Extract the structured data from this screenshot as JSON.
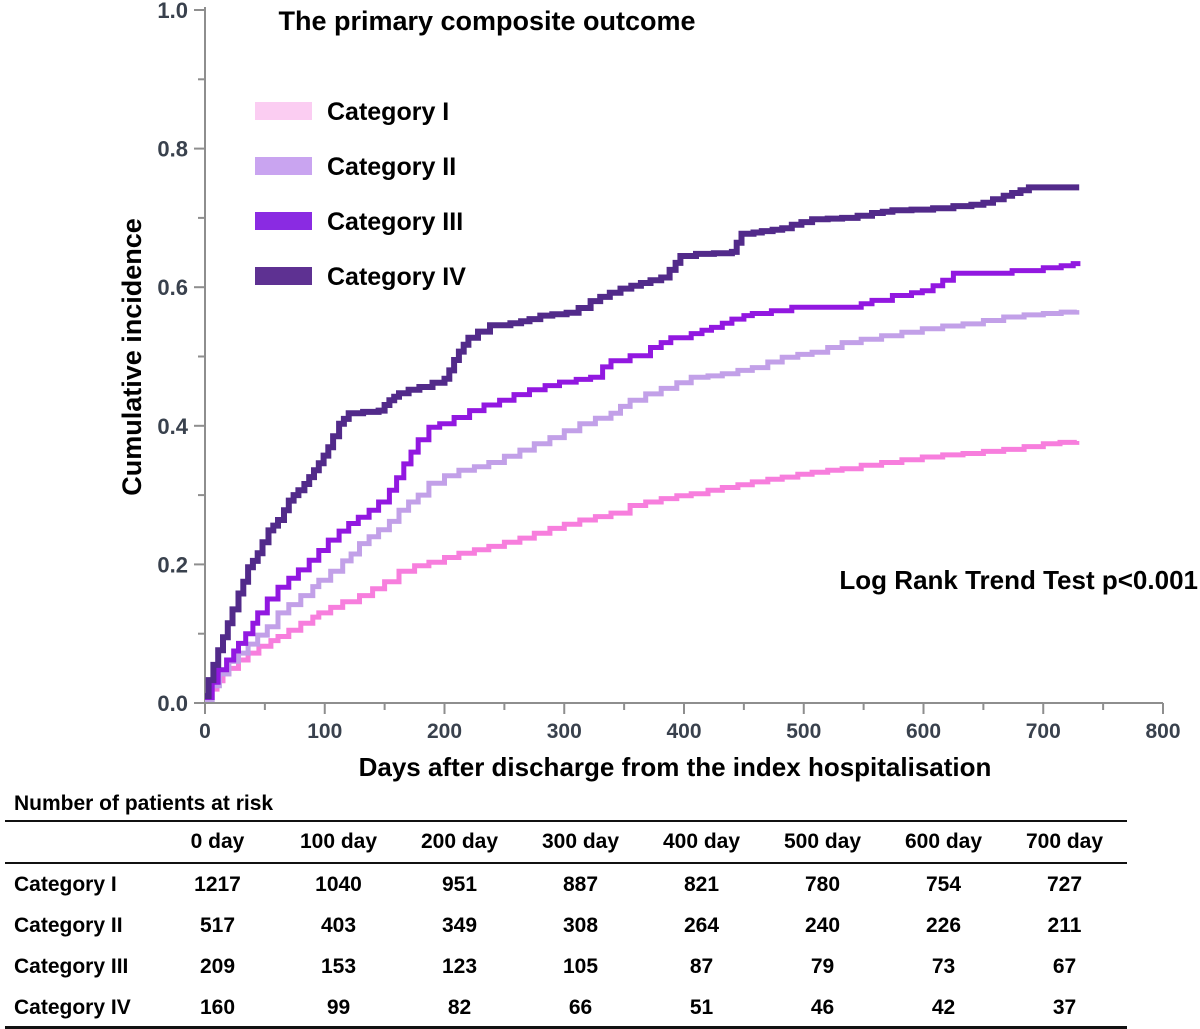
{
  "title": "The primary composite outcome",
  "y_axis_label": "Cumulative incidence",
  "x_axis_label": "Days after discharge from the index hospitalisation",
  "annotation": "Log Rank Trend Test p<0.001",
  "colors": {
    "axis_line": "#8e8e8e",
    "tick_label": "#39414d",
    "text": "#000000"
  },
  "risk_table": {
    "heading": "Number of patients at risk",
    "columns": [
      "0 day",
      "100 day",
      "200 day",
      "300 day",
      "400 day",
      "500 day",
      "600 day",
      "700 day"
    ],
    "rows": [
      {
        "label": "Category I",
        "values": [
          "1217",
          "1040",
          "951",
          "887",
          "821",
          "780",
          "754",
          "727"
        ]
      },
      {
        "label": "Category II",
        "values": [
          "517",
          "403",
          "349",
          "308",
          "264",
          "240",
          "226",
          "211"
        ]
      },
      {
        "label": "Category III",
        "values": [
          "209",
          "153",
          "123",
          "105",
          "87",
          "79",
          "73",
          "67"
        ]
      },
      {
        "label": "Category IV",
        "values": [
          "160",
          "99",
          "82",
          "66",
          "51",
          "46",
          "42",
          "37"
        ]
      }
    ]
  },
  "chart_data": {
    "type": "line",
    "subtype": "cumulative-incidence-step",
    "title": "The primary composite outcome",
    "xlabel": "Days after discharge from the index hospitalisation",
    "ylabel": "Cumulative incidence",
    "xlim": [
      0,
      800
    ],
    "ylim": [
      0.0,
      1.0
    ],
    "x_major_ticks": [
      0,
      100,
      200,
      300,
      400,
      500,
      600,
      700,
      800
    ],
    "x_minor_step": 50,
    "y_major_ticks": [
      "0.0",
      "0.2",
      "0.4",
      "0.6",
      "0.8",
      "1.0"
    ],
    "y_minor_step": 0.1,
    "grid": false,
    "legend_position": "upper-left-inside",
    "annotation": "Log Rank Trend Test p<0.001",
    "series": [
      {
        "name": "Category I",
        "color": "#f77edd",
        "swatch_color": "#fbcdf2",
        "stroke_width": 5,
        "points": [
          [
            0,
            0.005
          ],
          [
            5,
            0.02
          ],
          [
            10,
            0.032
          ],
          [
            15,
            0.042
          ],
          [
            20,
            0.05
          ],
          [
            28,
            0.062
          ],
          [
            36,
            0.072
          ],
          [
            45,
            0.082
          ],
          [
            55,
            0.09
          ],
          [
            61,
            0.096
          ],
          [
            70,
            0.105
          ],
          [
            80,
            0.115
          ],
          [
            90,
            0.124
          ],
          [
            95,
            0.13
          ],
          [
            105,
            0.138
          ],
          [
            115,
            0.146
          ],
          [
            129,
            0.155
          ],
          [
            140,
            0.165
          ],
          [
            150,
            0.175
          ],
          [
            162,
            0.19
          ],
          [
            175,
            0.198
          ],
          [
            187,
            0.203
          ],
          [
            200,
            0.21
          ],
          [
            212,
            0.216
          ],
          [
            225,
            0.221
          ],
          [
            237,
            0.226
          ],
          [
            250,
            0.232
          ],
          [
            263,
            0.238
          ],
          [
            275,
            0.245
          ],
          [
            288,
            0.252
          ],
          [
            300,
            0.258
          ],
          [
            313,
            0.264
          ],
          [
            326,
            0.269
          ],
          [
            339,
            0.274
          ],
          [
            355,
            0.285
          ],
          [
            368,
            0.29
          ],
          [
            381,
            0.295
          ],
          [
            394,
            0.299
          ],
          [
            406,
            0.302
          ],
          [
            420,
            0.307
          ],
          [
            432,
            0.311
          ],
          [
            445,
            0.315
          ],
          [
            457,
            0.319
          ],
          [
            470,
            0.323
          ],
          [
            482,
            0.326
          ],
          [
            495,
            0.33
          ],
          [
            507,
            0.333
          ],
          [
            520,
            0.336
          ],
          [
            532,
            0.338
          ],
          [
            548,
            0.343
          ],
          [
            565,
            0.347
          ],
          [
            582,
            0.351
          ],
          [
            599,
            0.355
          ],
          [
            616,
            0.358
          ],
          [
            633,
            0.36
          ],
          [
            650,
            0.363
          ],
          [
            667,
            0.366
          ],
          [
            684,
            0.37
          ],
          [
            700,
            0.374
          ],
          [
            714,
            0.376
          ],
          [
            728,
            0.378
          ]
        ]
      },
      {
        "name": "Category II",
        "color": "#c2a0e8",
        "swatch_color": "#c9a4f0",
        "stroke_width": 5,
        "points": [
          [
            0,
            0.005
          ],
          [
            6,
            0.025
          ],
          [
            12,
            0.042
          ],
          [
            20,
            0.06
          ],
          [
            28,
            0.072
          ],
          [
            36,
            0.085
          ],
          [
            44,
            0.098
          ],
          [
            52,
            0.11
          ],
          [
            61,
            0.13
          ],
          [
            70,
            0.142
          ],
          [
            80,
            0.155
          ],
          [
            90,
            0.168
          ],
          [
            95,
            0.177
          ],
          [
            105,
            0.19
          ],
          [
            115,
            0.205
          ],
          [
            122,
            0.215
          ],
          [
            129,
            0.23
          ],
          [
            137,
            0.24
          ],
          [
            145,
            0.25
          ],
          [
            154,
            0.262
          ],
          [
            162,
            0.278
          ],
          [
            170,
            0.29
          ],
          [
            178,
            0.3
          ],
          [
            187,
            0.317
          ],
          [
            200,
            0.328
          ],
          [
            212,
            0.336
          ],
          [
            225,
            0.341
          ],
          [
            237,
            0.347
          ],
          [
            250,
            0.356
          ],
          [
            263,
            0.365
          ],
          [
            275,
            0.374
          ],
          [
            288,
            0.383
          ],
          [
            300,
            0.393
          ],
          [
            313,
            0.403
          ],
          [
            326,
            0.411
          ],
          [
            339,
            0.418
          ],
          [
            347,
            0.428
          ],
          [
            355,
            0.437
          ],
          [
            368,
            0.446
          ],
          [
            381,
            0.454
          ],
          [
            394,
            0.462
          ],
          [
            406,
            0.47
          ],
          [
            420,
            0.472
          ],
          [
            432,
            0.475
          ],
          [
            445,
            0.48
          ],
          [
            457,
            0.484
          ],
          [
            470,
            0.492
          ],
          [
            482,
            0.499
          ],
          [
            495,
            0.503
          ],
          [
            507,
            0.506
          ],
          [
            520,
            0.513
          ],
          [
            532,
            0.52
          ],
          [
            548,
            0.525
          ],
          [
            565,
            0.53
          ],
          [
            582,
            0.535
          ],
          [
            599,
            0.54
          ],
          [
            616,
            0.544
          ],
          [
            633,
            0.547
          ],
          [
            650,
            0.552
          ],
          [
            667,
            0.557
          ],
          [
            684,
            0.56
          ],
          [
            700,
            0.562
          ],
          [
            715,
            0.564
          ],
          [
            728,
            0.567
          ]
        ]
      },
      {
        "name": "Category III",
        "color": "#9218e0",
        "swatch_color": "#8a2be2",
        "stroke_width": 5,
        "points": [
          [
            0,
            0.008
          ],
          [
            6,
            0.03
          ],
          [
            11,
            0.048
          ],
          [
            18,
            0.062
          ],
          [
            24,
            0.075
          ],
          [
            28,
            0.086
          ],
          [
            34,
            0.1
          ],
          [
            40,
            0.115
          ],
          [
            44,
            0.13
          ],
          [
            52,
            0.15
          ],
          [
            61,
            0.167
          ],
          [
            70,
            0.18
          ],
          [
            78,
            0.192
          ],
          [
            87,
            0.206
          ],
          [
            95,
            0.22
          ],
          [
            103,
            0.235
          ],
          [
            112,
            0.248
          ],
          [
            120,
            0.259
          ],
          [
            128,
            0.268
          ],
          [
            137,
            0.278
          ],
          [
            145,
            0.29
          ],
          [
            154,
            0.307
          ],
          [
            160,
            0.325
          ],
          [
            166,
            0.345
          ],
          [
            172,
            0.362
          ],
          [
            178,
            0.38
          ],
          [
            187,
            0.398
          ],
          [
            196,
            0.403
          ],
          [
            208,
            0.412
          ],
          [
            221,
            0.422
          ],
          [
            233,
            0.43
          ],
          [
            246,
            0.437
          ],
          [
            258,
            0.445
          ],
          [
            271,
            0.452
          ],
          [
            284,
            0.458
          ],
          [
            296,
            0.463
          ],
          [
            310,
            0.467
          ],
          [
            322,
            0.47
          ],
          [
            332,
            0.485
          ],
          [
            339,
            0.494
          ],
          [
            355,
            0.501
          ],
          [
            372,
            0.513
          ],
          [
            381,
            0.52
          ],
          [
            389,
            0.527
          ],
          [
            406,
            0.533
          ],
          [
            415,
            0.538
          ],
          [
            423,
            0.542
          ],
          [
            432,
            0.548
          ],
          [
            440,
            0.554
          ],
          [
            450,
            0.559
          ],
          [
            457,
            0.562
          ],
          [
            473,
            0.566
          ],
          [
            490,
            0.571
          ],
          [
            548,
            0.576
          ],
          [
            557,
            0.581
          ],
          [
            574,
            0.588
          ],
          [
            590,
            0.592
          ],
          [
            599,
            0.595
          ],
          [
            608,
            0.602
          ],
          [
            616,
            0.61
          ],
          [
            625,
            0.62
          ],
          [
            674,
            0.624
          ],
          [
            700,
            0.628
          ],
          [
            715,
            0.631
          ],
          [
            725,
            0.634
          ],
          [
            731,
            0.634
          ]
        ]
      },
      {
        "name": "Category IV",
        "color": "#522a8a",
        "swatch_color": "#5e3192",
        "stroke_width": 6,
        "points": [
          [
            0,
            0.01
          ],
          [
            3,
            0.033
          ],
          [
            7,
            0.055
          ],
          [
            11,
            0.076
          ],
          [
            15,
            0.095
          ],
          [
            19,
            0.115
          ],
          [
            23,
            0.135
          ],
          [
            28,
            0.158
          ],
          [
            32,
            0.175
          ],
          [
            36,
            0.196
          ],
          [
            40,
            0.205
          ],
          [
            44,
            0.216
          ],
          [
            48,
            0.232
          ],
          [
            53,
            0.249
          ],
          [
            57,
            0.256
          ],
          [
            61,
            0.264
          ],
          [
            66,
            0.278
          ],
          [
            70,
            0.292
          ],
          [
            74,
            0.3
          ],
          [
            78,
            0.307
          ],
          [
            83,
            0.316
          ],
          [
            87,
            0.326
          ],
          [
            91,
            0.336
          ],
          [
            95,
            0.346
          ],
          [
            99,
            0.357
          ],
          [
            103,
            0.369
          ],
          [
            107,
            0.385
          ],
          [
            112,
            0.403
          ],
          [
            116,
            0.41
          ],
          [
            120,
            0.418
          ],
          [
            132,
            0.42
          ],
          [
            145,
            0.422
          ],
          [
            150,
            0.43
          ],
          [
            154,
            0.437
          ],
          [
            158,
            0.442
          ],
          [
            162,
            0.447
          ],
          [
            170,
            0.452
          ],
          [
            179,
            0.456
          ],
          [
            190,
            0.462
          ],
          [
            200,
            0.468
          ],
          [
            204,
            0.48
          ],
          [
            208,
            0.495
          ],
          [
            212,
            0.507
          ],
          [
            216,
            0.517
          ],
          [
            220,
            0.527
          ],
          [
            228,
            0.536
          ],
          [
            238,
            0.545
          ],
          [
            255,
            0.548
          ],
          [
            264,
            0.551
          ],
          [
            271,
            0.554
          ],
          [
            280,
            0.559
          ],
          [
            290,
            0.561
          ],
          [
            302,
            0.563
          ],
          [
            312,
            0.57
          ],
          [
            322,
            0.58
          ],
          [
            330,
            0.586
          ],
          [
            338,
            0.592
          ],
          [
            347,
            0.598
          ],
          [
            356,
            0.602
          ],
          [
            364,
            0.606
          ],
          [
            372,
            0.61
          ],
          [
            381,
            0.614
          ],
          [
            388,
            0.625
          ],
          [
            393,
            0.635
          ],
          [
            397,
            0.645
          ],
          [
            410,
            0.648
          ],
          [
            425,
            0.649
          ],
          [
            440,
            0.651
          ],
          [
            444,
            0.664
          ],
          [
            448,
            0.677
          ],
          [
            458,
            0.679
          ],
          [
            465,
            0.681
          ],
          [
            474,
            0.683
          ],
          [
            482,
            0.685
          ],
          [
            490,
            0.69
          ],
          [
            498,
            0.694
          ],
          [
            507,
            0.698
          ],
          [
            520,
            0.699
          ],
          [
            532,
            0.7
          ],
          [
            545,
            0.703
          ],
          [
            557,
            0.707
          ],
          [
            566,
            0.709
          ],
          [
            574,
            0.711
          ],
          [
            590,
            0.712
          ],
          [
            608,
            0.714
          ],
          [
            625,
            0.717
          ],
          [
            640,
            0.719
          ],
          [
            650,
            0.722
          ],
          [
            658,
            0.727
          ],
          [
            667,
            0.732
          ],
          [
            674,
            0.736
          ],
          [
            681,
            0.74
          ],
          [
            688,
            0.744
          ],
          [
            730,
            0.744
          ]
        ]
      }
    ]
  }
}
